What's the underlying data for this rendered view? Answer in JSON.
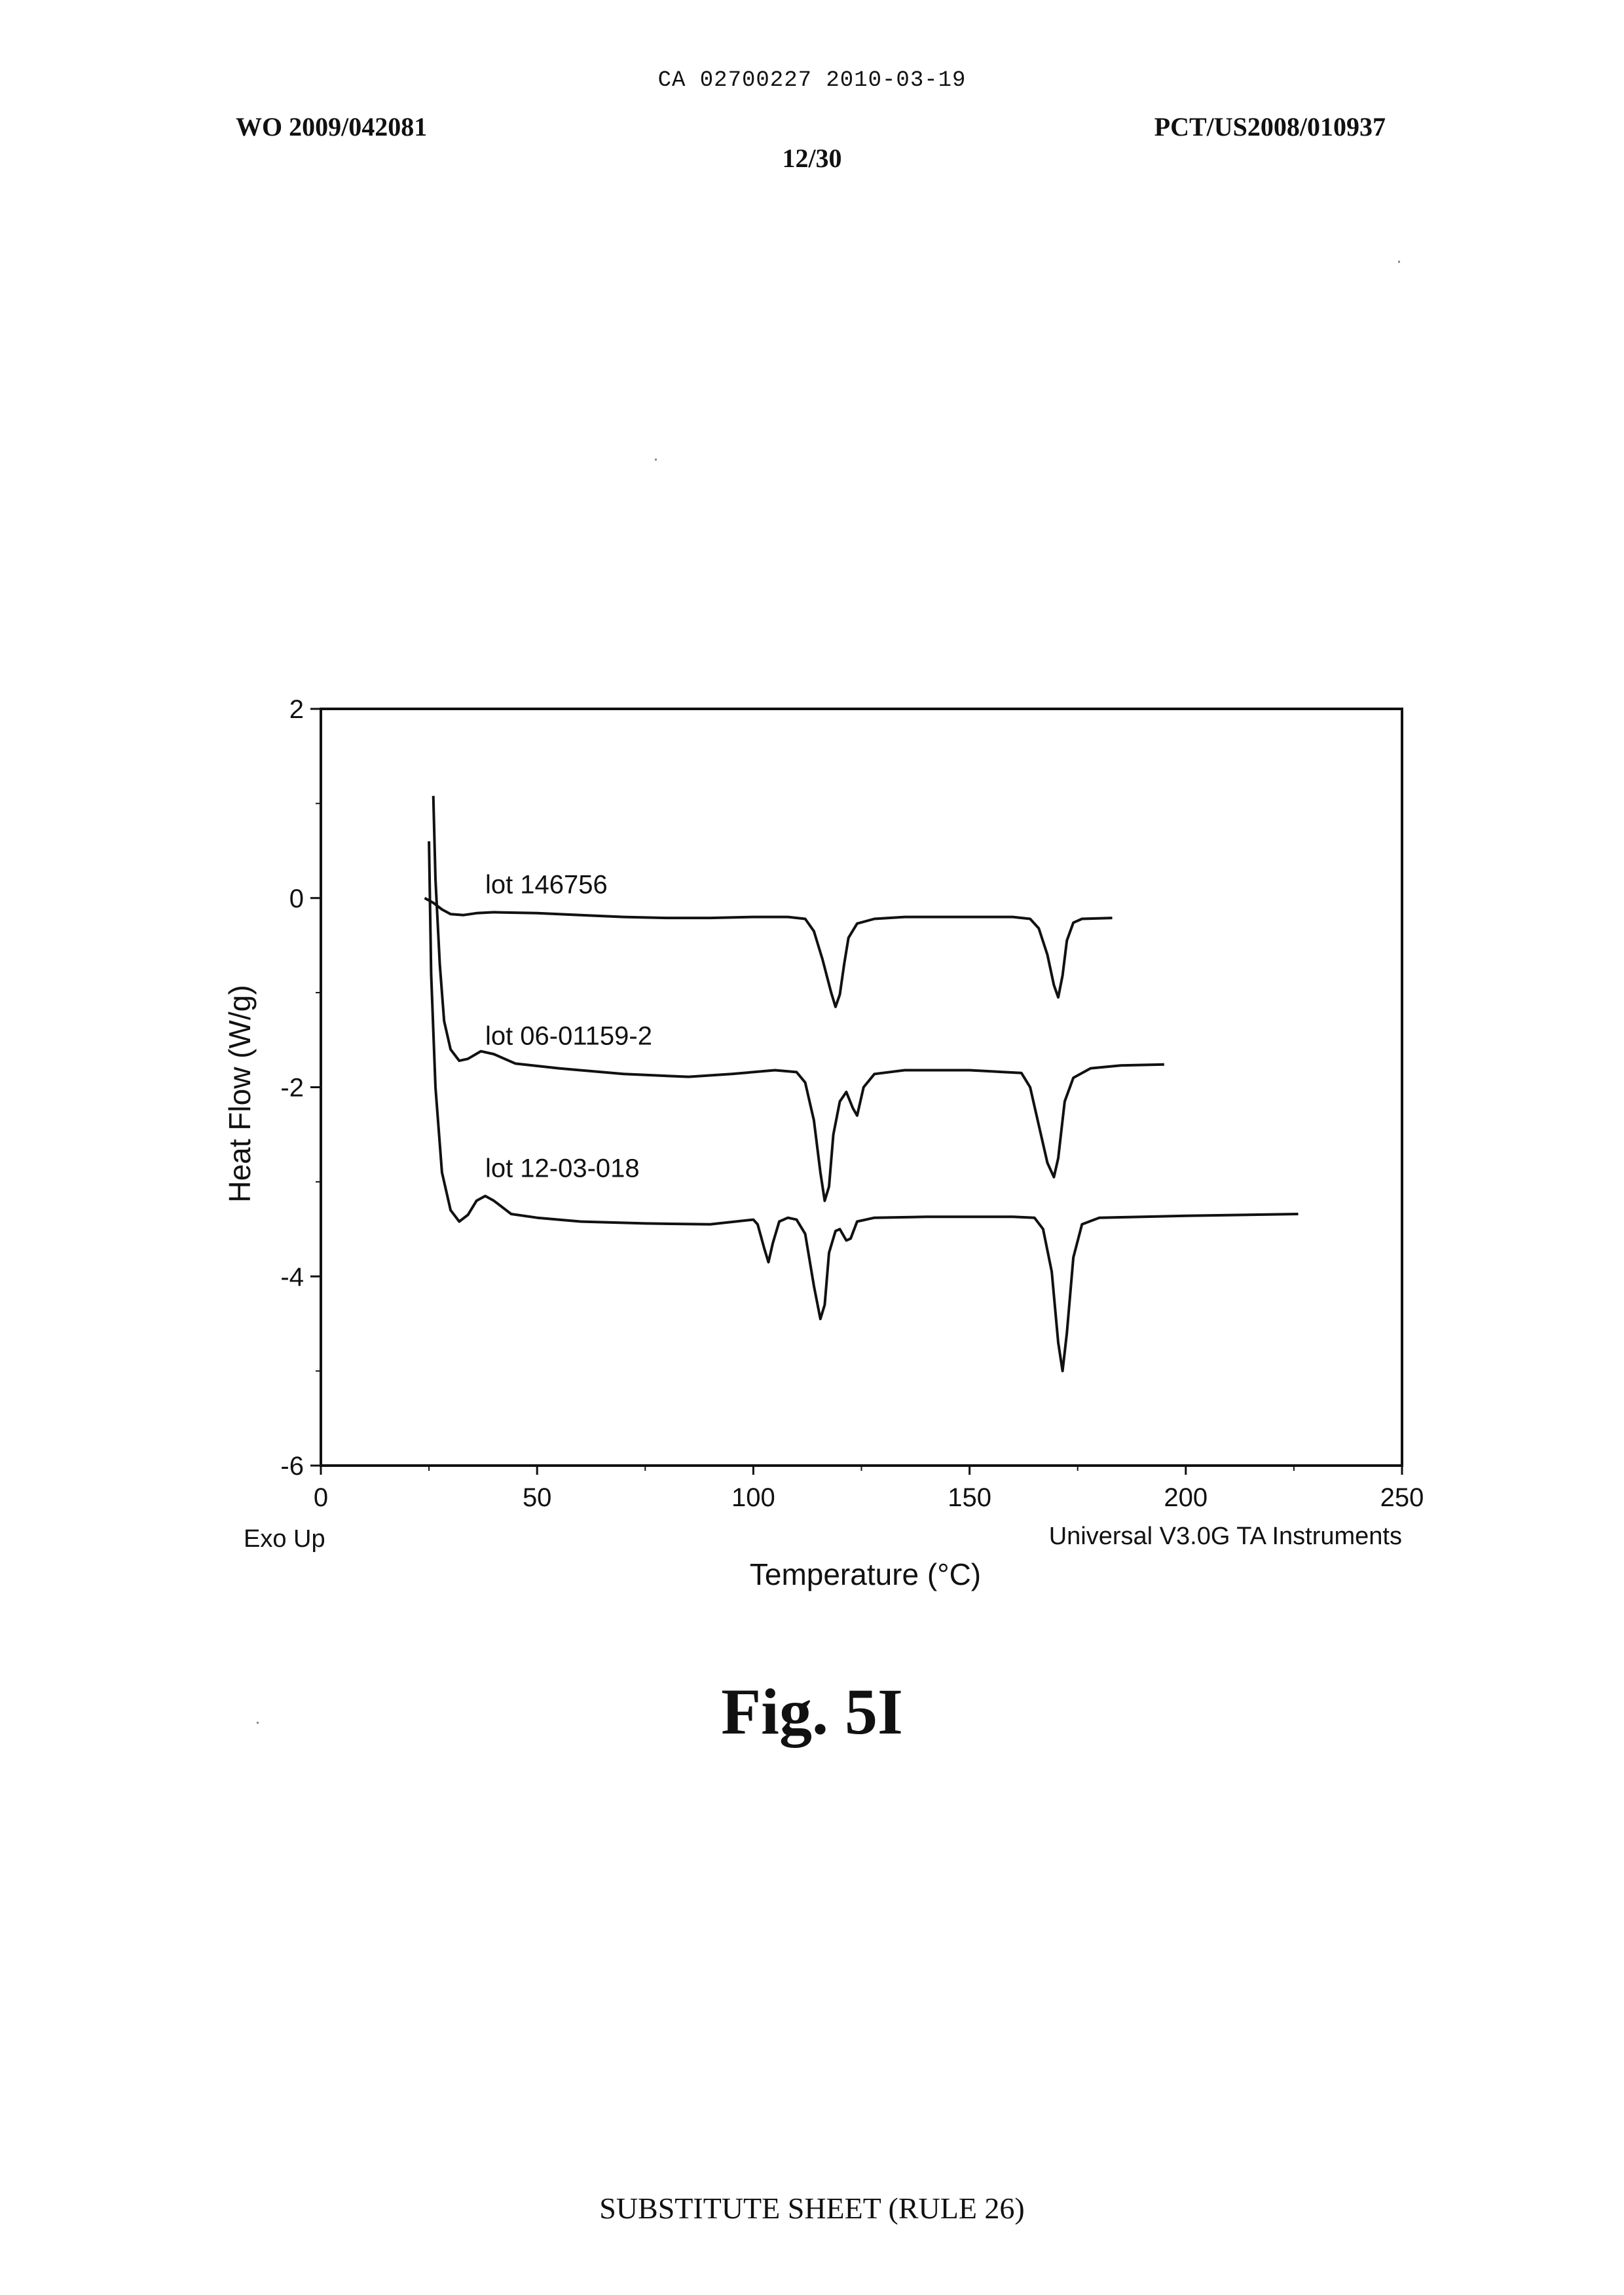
{
  "header": {
    "stamp": "CA 02700227 2010-03-19",
    "publication_number": "WO 2009/042081",
    "application_number": "PCT/US2008/010937",
    "sheet": "12/30"
  },
  "figure": {
    "caption": "Fig. 5I"
  },
  "footer": {
    "text": "SUBSTITUTE SHEET (RULE 26)"
  },
  "chart_data": {
    "type": "line",
    "ylabel": "Heat Flow (W/g)",
    "xlabel": "Temperature (°C)",
    "xlim": [
      0,
      250
    ],
    "ylim": [
      -6,
      2
    ],
    "x_ticks": [
      0,
      50,
      100,
      150,
      200,
      250
    ],
    "y_ticks": [
      2,
      0,
      -2,
      -4,
      -6
    ],
    "x_tick_labels": [
      "0",
      "50",
      "100",
      "150",
      "200",
      "250"
    ],
    "y_tick_labels": [
      "2",
      "0",
      "-2",
      "-4",
      "-6"
    ],
    "annotations": {
      "exo": "Exo Up",
      "software": "Universal V3.0G TA Instruments"
    },
    "grid": false,
    "line_color": "#111111",
    "series": [
      {
        "name": "lot 146756",
        "points": [
          [
            24,
            0.0
          ],
          [
            26,
            -0.05
          ],
          [
            28,
            -0.12
          ],
          [
            30,
            -0.17
          ],
          [
            33,
            -0.18
          ],
          [
            36,
            -0.16
          ],
          [
            40,
            -0.15
          ],
          [
            50,
            -0.16
          ],
          [
            60,
            -0.18
          ],
          [
            70,
            -0.2
          ],
          [
            80,
            -0.21
          ],
          [
            90,
            -0.21
          ],
          [
            100,
            -0.2
          ],
          [
            108,
            -0.2
          ],
          [
            112,
            -0.22
          ],
          [
            114,
            -0.35
          ],
          [
            116,
            -0.65
          ],
          [
            118,
            -1.0
          ],
          [
            119,
            -1.15
          ],
          [
            120,
            -1.02
          ],
          [
            121,
            -0.7
          ],
          [
            122,
            -0.42
          ],
          [
            124,
            -0.27
          ],
          [
            128,
            -0.22
          ],
          [
            135,
            -0.2
          ],
          [
            150,
            -0.2
          ],
          [
            160,
            -0.2
          ],
          [
            164,
            -0.22
          ],
          [
            166,
            -0.32
          ],
          [
            168,
            -0.6
          ],
          [
            169.5,
            -0.92
          ],
          [
            170.5,
            -1.05
          ],
          [
            171.5,
            -0.82
          ],
          [
            172.5,
            -0.45
          ],
          [
            174,
            -0.26
          ],
          [
            176,
            -0.22
          ],
          [
            183,
            -0.21
          ]
        ]
      },
      {
        "name": "lot 06-01159-2",
        "points": [
          [
            26,
            1.08
          ],
          [
            26.5,
            0.2
          ],
          [
            27.5,
            -0.7
          ],
          [
            28.5,
            -1.3
          ],
          [
            30,
            -1.6
          ],
          [
            32,
            -1.72
          ],
          [
            34,
            -1.7
          ],
          [
            37,
            -1.62
          ],
          [
            40,
            -1.65
          ],
          [
            45,
            -1.75
          ],
          [
            55,
            -1.8
          ],
          [
            70,
            -1.86
          ],
          [
            85,
            -1.89
          ],
          [
            95,
            -1.86
          ],
          [
            105,
            -1.82
          ],
          [
            110,
            -1.84
          ],
          [
            112,
            -1.95
          ],
          [
            114,
            -2.35
          ],
          [
            115.5,
            -2.9
          ],
          [
            116.5,
            -3.2
          ],
          [
            117.5,
            -3.05
          ],
          [
            118.5,
            -2.5
          ],
          [
            120,
            -2.15
          ],
          [
            121.5,
            -2.05
          ],
          [
            123,
            -2.22
          ],
          [
            124,
            -2.3
          ],
          [
            125.5,
            -2.0
          ],
          [
            128,
            -1.86
          ],
          [
            135,
            -1.82
          ],
          [
            150,
            -1.82
          ],
          [
            162,
            -1.85
          ],
          [
            164,
            -2.0
          ],
          [
            166,
            -2.4
          ],
          [
            168,
            -2.8
          ],
          [
            169.5,
            -2.95
          ],
          [
            170.5,
            -2.75
          ],
          [
            172,
            -2.15
          ],
          [
            174,
            -1.9
          ],
          [
            178,
            -1.8
          ],
          [
            185,
            -1.77
          ],
          [
            195,
            -1.76
          ]
        ]
      },
      {
        "name": "lot 12-03-018",
        "points": [
          [
            25,
            0.6
          ],
          [
            25.5,
            -0.8
          ],
          [
            26.5,
            -2.0
          ],
          [
            28,
            -2.9
          ],
          [
            30,
            -3.3
          ],
          [
            32,
            -3.42
          ],
          [
            34,
            -3.35
          ],
          [
            36,
            -3.2
          ],
          [
            38,
            -3.15
          ],
          [
            40,
            -3.2
          ],
          [
            44,
            -3.34
          ],
          [
            50,
            -3.38
          ],
          [
            60,
            -3.42
          ],
          [
            75,
            -3.44
          ],
          [
            90,
            -3.45
          ],
          [
            100,
            -3.4
          ],
          [
            101,
            -3.45
          ],
          [
            102.5,
            -3.7
          ],
          [
            103.5,
            -3.85
          ],
          [
            104.5,
            -3.65
          ],
          [
            106,
            -3.42
          ],
          [
            108,
            -3.38
          ],
          [
            110,
            -3.4
          ],
          [
            112,
            -3.55
          ],
          [
            114,
            -4.1
          ],
          [
            115.5,
            -4.45
          ],
          [
            116.5,
            -4.3
          ],
          [
            117.5,
            -3.75
          ],
          [
            119,
            -3.52
          ],
          [
            120,
            -3.5
          ],
          [
            121.5,
            -3.62
          ],
          [
            122.5,
            -3.6
          ],
          [
            124,
            -3.42
          ],
          [
            128,
            -3.38
          ],
          [
            140,
            -3.37
          ],
          [
            160,
            -3.37
          ],
          [
            165,
            -3.38
          ],
          [
            167,
            -3.5
          ],
          [
            169,
            -3.95
          ],
          [
            170.5,
            -4.7
          ],
          [
            171.5,
            -5.0
          ],
          [
            172.5,
            -4.6
          ],
          [
            174,
            -3.8
          ],
          [
            176,
            -3.45
          ],
          [
            180,
            -3.38
          ],
          [
            200,
            -3.36
          ],
          [
            226,
            -3.34
          ]
        ]
      }
    ]
  }
}
